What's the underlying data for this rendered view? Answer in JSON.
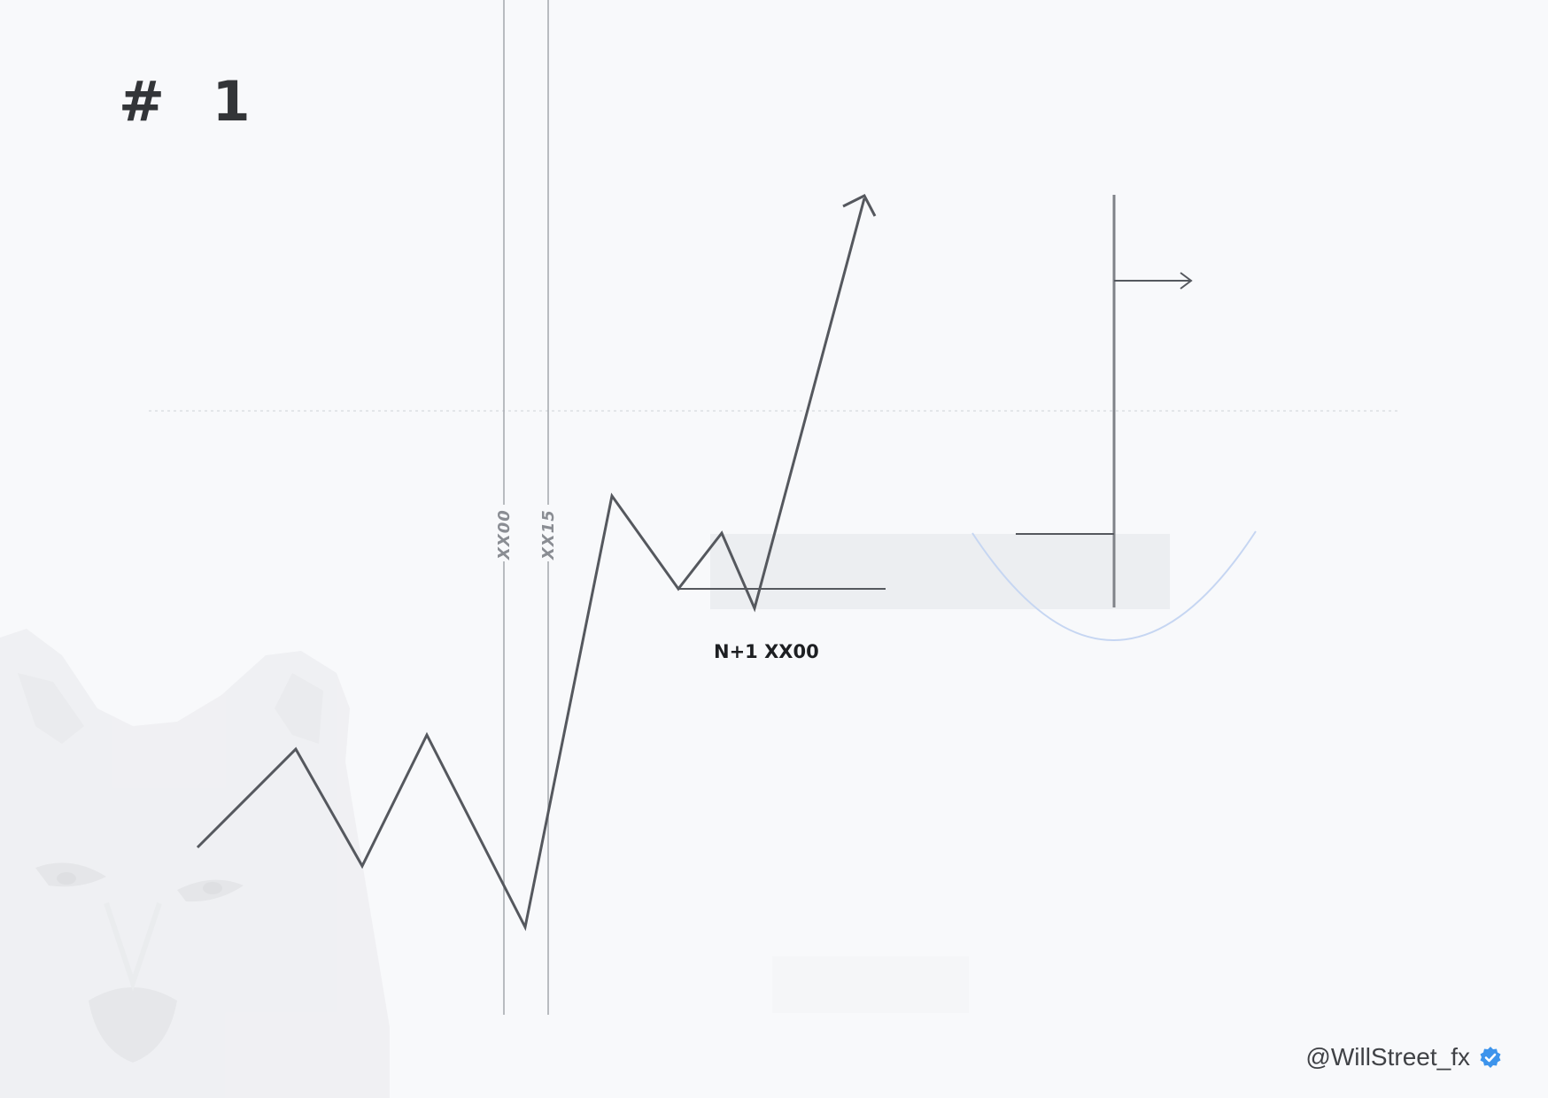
{
  "title": "# 1",
  "time_markers": [
    "XX00",
    "XX15"
  ],
  "level_label": "N+1 XX00",
  "watermark": "wolf-watermark",
  "footer": {
    "handle": "@WillStreet_fx",
    "badge_icon": "verified-badge-icon"
  },
  "colors": {
    "background": "#f8f9fb",
    "price_line": "#55585e",
    "marker_line": "#a9acb2",
    "zone_fill": "#eceef1",
    "curve": "#c6d6f2",
    "badge": "#3d94ec",
    "title": "#333538"
  }
}
